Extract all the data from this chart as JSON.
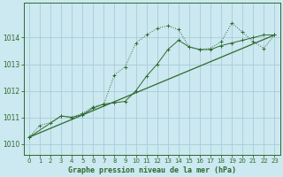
{
  "title": "Graphe pression niveau de la mer (hPa)",
  "background_color": "#cce8f0",
  "grid_color": "#a8cdd8",
  "line_color": "#2d6a2d",
  "xlim": [
    -0.5,
    23.5
  ],
  "ylim": [
    1009.6,
    1015.3
  ],
  "yticks": [
    1010,
    1011,
    1012,
    1013,
    1014
  ],
  "xticks": [
    0,
    1,
    2,
    3,
    4,
    5,
    6,
    7,
    8,
    9,
    10,
    11,
    12,
    13,
    14,
    15,
    16,
    17,
    18,
    19,
    20,
    21,
    22,
    23
  ],
  "series1_x": [
    0,
    1,
    2,
    3,
    4,
    5,
    6,
    7,
    8,
    9,
    10,
    11,
    12,
    13,
    14,
    15,
    16,
    17,
    18,
    19,
    20,
    21,
    22,
    23
  ],
  "series1_y": [
    1010.25,
    1010.7,
    1010.8,
    1011.05,
    1011.0,
    1011.15,
    1011.4,
    1011.5,
    1012.6,
    1012.9,
    1013.8,
    1014.1,
    1014.35,
    1014.45,
    1014.3,
    1013.65,
    1013.55,
    1013.6,
    1013.85,
    1014.55,
    1014.2,
    1013.85,
    1013.6,
    1014.1
  ],
  "series2_x": [
    0,
    3,
    4,
    5,
    6,
    7,
    8,
    9,
    10,
    11,
    12,
    13,
    14,
    15,
    16,
    17,
    18,
    19,
    20,
    21,
    22,
    23
  ],
  "series2_y": [
    1010.25,
    1011.05,
    1011.0,
    1011.1,
    1011.35,
    1011.5,
    1011.55,
    1011.6,
    1012.0,
    1012.55,
    1013.0,
    1013.55,
    1013.9,
    1013.65,
    1013.55,
    1013.55,
    1013.7,
    1013.8,
    1013.9,
    1014.0,
    1014.1,
    1014.1
  ],
  "series3_x": [
    0,
    23
  ],
  "series3_y": [
    1010.25,
    1014.1
  ]
}
